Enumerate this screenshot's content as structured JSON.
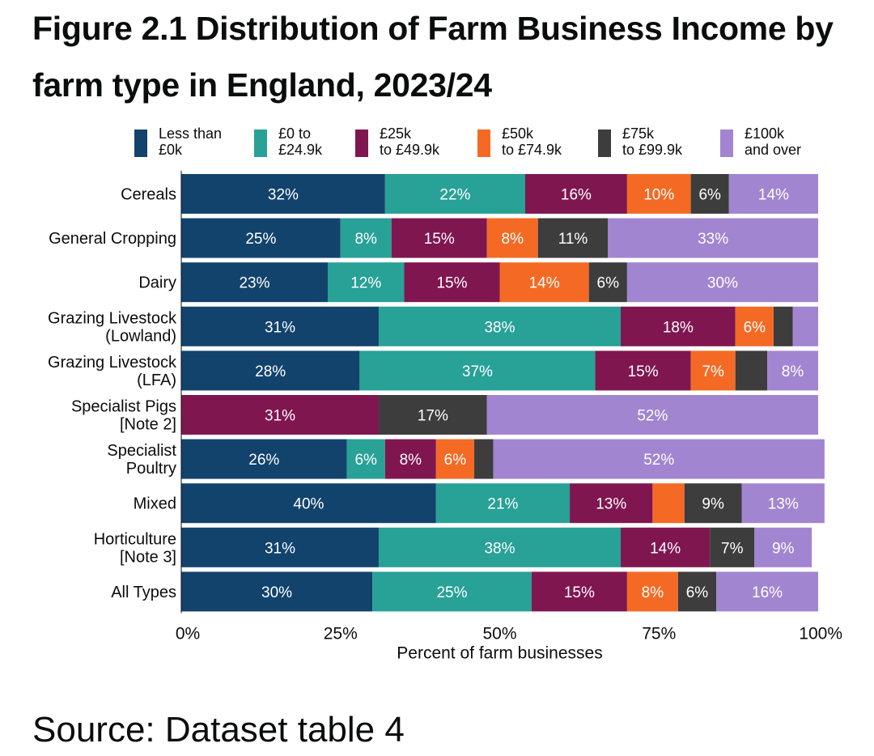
{
  "title": "Figure 2.1 Distribution of Farm Business Income by farm type in England, 2023/24",
  "source": "Source: Dataset table 4",
  "chart_data": {
    "type": "bar",
    "orientation": "horizontal",
    "stacked": true,
    "title": "Figure 2.1 Distribution of Farm Business Income by farm type in England, 2023/24",
    "xlabel": "Percent of farm businesses",
    "ylabel": "",
    "xlim": [
      0,
      100
    ],
    "xticks": [
      "0%",
      "25%",
      "50%",
      "75%",
      "100%"
    ],
    "legend_position": "top",
    "categories": [
      "Cereals",
      "General Cropping",
      "Dairy",
      "Grazing Livestock (Lowland)",
      "Grazing Livestock (LFA)",
      "Specialist Pigs [Note 2]",
      "Specialist Poultry",
      "Mixed",
      "Horticulture [Note 3]",
      "All Types"
    ],
    "category_lines": [
      [
        "Cereals"
      ],
      [
        "General Cropping"
      ],
      [
        "Dairy"
      ],
      [
        "Grazing Livestock",
        "(Lowland)"
      ],
      [
        "Grazing Livestock",
        "(LFA)"
      ],
      [
        "Specialist Pigs",
        "[Note 2]"
      ],
      [
        "Specialist",
        "Poultry"
      ],
      [
        "Mixed"
      ],
      [
        "Horticulture",
        "[Note 3]"
      ],
      [
        "All Types"
      ]
    ],
    "series": [
      {
        "name": "Less than\n£0k",
        "color": "#12436d",
        "values": [
          32,
          25,
          23,
          31,
          28,
          0,
          26,
          40,
          31,
          30
        ],
        "labels": [
          "32%",
          "25%",
          "23%",
          "31%",
          "28%",
          "",
          "26%",
          "40%",
          "31%",
          "30%"
        ]
      },
      {
        "name": "£0 to\n£24.9k",
        "color": "#28a197",
        "values": [
          22,
          8,
          12,
          38,
          37,
          0,
          6,
          21,
          38,
          25
        ],
        "labels": [
          "22%",
          "8%",
          "12%",
          "38%",
          "37%",
          "",
          "6%",
          "21%",
          "38%",
          "25%"
        ]
      },
      {
        "name": "£25k\nto £49.9k",
        "color": "#801650",
        "values": [
          16,
          15,
          15,
          18,
          15,
          31,
          8,
          13,
          14,
          15
        ],
        "labels": [
          "16%",
          "15%",
          "15%",
          "18%",
          "15%",
          "31%",
          "8%",
          "13%",
          "14%",
          "15%"
        ]
      },
      {
        "name": "£50k\nto £74.9k",
        "color": "#f46a25",
        "values": [
          10,
          8,
          14,
          6,
          7,
          0,
          6,
          5,
          0,
          8
        ],
        "labels": [
          "10%",
          "8%",
          "14%",
          "6%",
          "7%",
          "",
          "6%",
          "",
          "",
          "8%"
        ]
      },
      {
        "name": "£75k\nto £99.9k",
        "color": "#3d3d3d",
        "values": [
          6,
          11,
          6,
          3,
          5,
          17,
          3,
          9,
          7,
          6
        ],
        "labels": [
          "6%",
          "11%",
          "6%",
          "",
          "",
          "17%",
          "",
          "9%",
          "7%",
          "6%"
        ]
      },
      {
        "name": "£100k\nand over",
        "color": "#a285d1",
        "values": [
          14,
          33,
          30,
          4,
          8,
          52,
          52,
          13,
          9,
          16
        ],
        "labels": [
          "14%",
          "33%",
          "30%",
          "",
          "8%",
          "52%",
          "52%",
          "13%",
          "9%",
          "16%"
        ]
      }
    ]
  }
}
